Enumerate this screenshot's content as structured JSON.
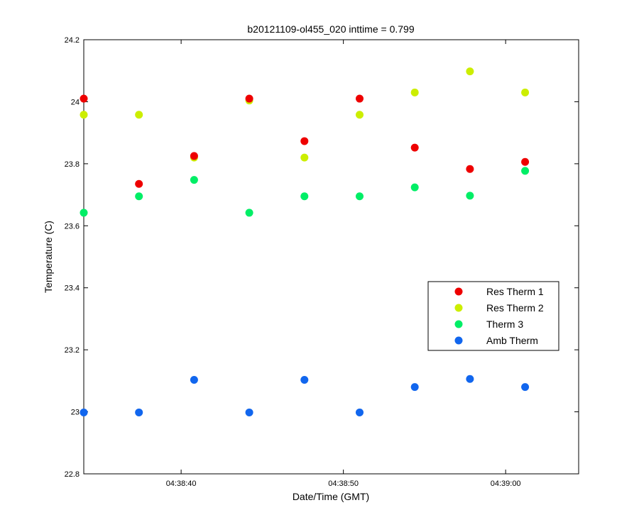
{
  "chart_data": {
    "type": "scatter",
    "title": "b20121109-ol455_020 inttime = 0.799",
    "xlabel": "Date/Time (GMT)",
    "ylabel": "Temperature (C)",
    "ylim": [
      22.8,
      24.2
    ],
    "xlim_seconds": [
      34,
      64.5
    ],
    "y_ticks": [
      {
        "value": 22.8,
        "label": "22.8"
      },
      {
        "value": 23,
        "label": "23"
      },
      {
        "value": 23.2,
        "label": "23.2"
      },
      {
        "value": 23.4,
        "label": "23.4"
      },
      {
        "value": 23.6,
        "label": "23.6"
      },
      {
        "value": 23.8,
        "label": "23.8"
      },
      {
        "value": 24,
        "label": "24"
      },
      {
        "value": 24.2,
        "label": "24.2"
      }
    ],
    "x_ticks": [
      {
        "value": 40,
        "label": "04:38:40"
      },
      {
        "value": 50,
        "label": "04:38:50"
      },
      {
        "value": 60,
        "label": "04:39:00"
      }
    ],
    "x": [
      34.0,
      37.4,
      40.8,
      44.2,
      47.6,
      51.0,
      54.4,
      57.8,
      61.2
    ],
    "series": [
      {
        "name": "Res Therm 1",
        "color": "#ee0000",
        "values": [
          24.01,
          23.735,
          23.825,
          24.01,
          23.873,
          24.01,
          23.852,
          23.783,
          23.806
        ]
      },
      {
        "name": "Res Therm 2",
        "color": "#ccee00",
        "values": [
          23.958,
          23.958,
          23.82,
          24.004,
          23.82,
          23.958,
          24.03,
          24.098,
          24.03
        ]
      },
      {
        "name": "Therm 3",
        "color": "#00ee66",
        "values": [
          23.642,
          23.695,
          23.748,
          23.642,
          23.695,
          23.695,
          23.724,
          23.697,
          23.777
        ]
      },
      {
        "name": "Amb Therm",
        "color": "#1166ee",
        "values": [
          22.998,
          22.998,
          23.103,
          22.998,
          23.103,
          22.998,
          23.08,
          23.106,
          23.08
        ]
      }
    ],
    "legend_position": "center-right",
    "grid": false
  }
}
